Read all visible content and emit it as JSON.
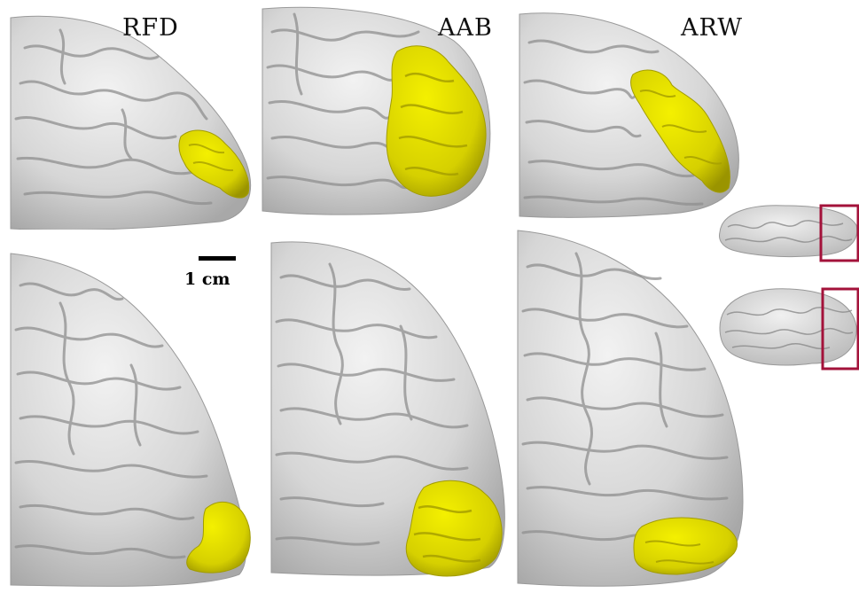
{
  "labels": {
    "rfd": "RFD",
    "aab": "AAB",
    "arw": "ARW"
  },
  "scale_bar": {
    "text": "1 cm"
  },
  "colors": {
    "cortex": "#dcdcdc",
    "cortex_shadow": "#a9a9a9",
    "region": "#e0dc00",
    "region_shadow": "#9c9700",
    "inset_box": "#a3123a"
  }
}
